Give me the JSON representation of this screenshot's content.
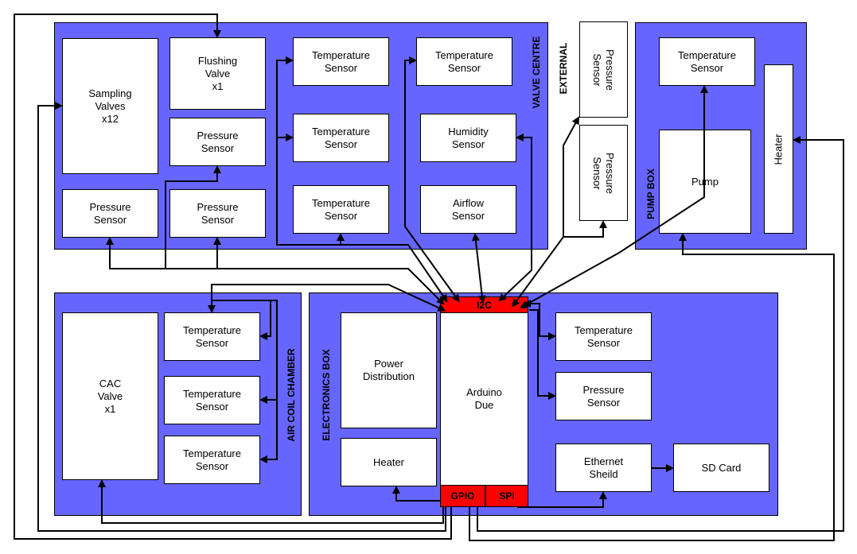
{
  "regions": {
    "valve_centre": "VALVE CENTRE",
    "external": "EXTERNAL",
    "pump_box": "PUMP BOX",
    "air_coil_chamber": "AIR COIL CHAMBER",
    "electronics_box": "ELECTRONICS BOX"
  },
  "valve_centre": {
    "sampling_valves": "Sampling\nValves\nx12",
    "flushing_valve": "Flushing\nValve\nx1",
    "pressure_sensor_1": "Pressure\nSensor",
    "pressure_sensor_2": "Pressure\nSensor",
    "pressure_sensor_3": "Pressure\nSensor",
    "temp_sensor_1": "Temperature\nSensor",
    "temp_sensor_2": "Temperature\nSensor",
    "temp_sensor_3": "Temperature\nSensor",
    "temp_sensor_4": "Temperature\nSensor",
    "humidity_sensor": "Humidity\nSensor",
    "airflow_sensor": "Airflow\nSensor"
  },
  "external": {
    "pressure_sensor_1": "Pressure\nSensor",
    "pressure_sensor_2": "Pressure\nSensor"
  },
  "pump_box": {
    "temp_sensor": "Temperature\nSensor",
    "pump": "Pump",
    "heater": "Heater"
  },
  "air_coil_chamber": {
    "cac_valve": "CAC\nValve\nx1",
    "temp_sensor_1": "Temperature\nSensor",
    "temp_sensor_2": "Temperature\nSensor",
    "temp_sensor_3": "Temperature\nSensor"
  },
  "electronics_box": {
    "power_distribution": "Power\nDistribution",
    "heater": "Heater",
    "arduino": "Arduino\nDue",
    "i2c": "I2C",
    "gpio": "GPIO",
    "spi": "SPI",
    "temp_sensor": "Temperature\nSensor",
    "pressure_sensor": "Pressure\nSensor",
    "ethernet": "Ethernet\nSheild",
    "sd_card": "SD Card"
  },
  "colors": {
    "region": "#6666FF",
    "bus": "#FF0000"
  }
}
